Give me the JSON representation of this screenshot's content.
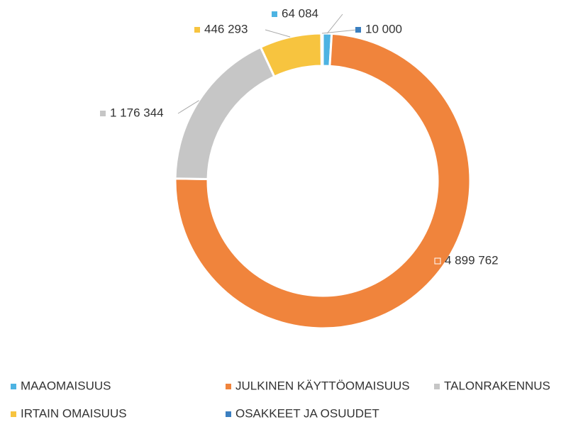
{
  "chart_data": {
    "type": "donut",
    "categories": [
      "MAAOMAISUUS",
      "JULKINEN KÄYTTÖOMAISUUS",
      "TALONRAKENNUS",
      "IRTAIN OMAISUUS",
      "OSAKKEET JA OSUUDET"
    ],
    "values": [
      64084,
      4899762,
      1176344,
      446293,
      10000
    ],
    "value_labels": [
      "64 084",
      "4 899 762",
      "1 176 344",
      "446 293",
      "10 000"
    ],
    "colors": [
      "#4db3e2",
      "#f0843c",
      "#c6c6c6",
      "#f7c43f",
      "#3b7fc0"
    ],
    "legend": "bottom"
  }
}
